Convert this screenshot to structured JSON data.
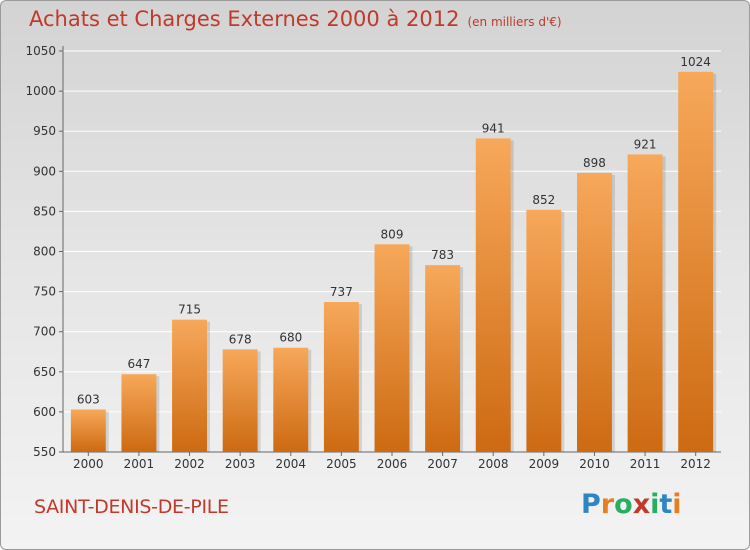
{
  "header": {
    "title": "Achats et Charges Externes 2000 à 2012",
    "unit": "(en milliers d'€)"
  },
  "footer": {
    "commune": "SAINT-DENIS-DE-PILE",
    "logo_text": "Proxiti"
  },
  "colors": {
    "bar_top": "#f7a85a",
    "bar_bottom": "#cd6a12",
    "title": "#c0392b",
    "grid": "#ffffff",
    "text": "#333333"
  },
  "chart_data": {
    "type": "bar",
    "title": "Achats et Charges Externes 2000 à 2012",
    "subtitle": "(en milliers d'€)",
    "xlabel": "",
    "ylabel": "",
    "categories": [
      "2000",
      "2001",
      "2002",
      "2003",
      "2004",
      "2005",
      "2006",
      "2007",
      "2008",
      "2009",
      "2010",
      "2011",
      "2012"
    ],
    "values": [
      603,
      647,
      715,
      678,
      680,
      737,
      809,
      783,
      941,
      852,
      898,
      921,
      1024
    ],
    "ylim": [
      550,
      1050
    ],
    "yticks": [
      550,
      600,
      650,
      700,
      750,
      800,
      850,
      900,
      950,
      1000,
      1050
    ],
    "grid": true,
    "data_labels": true
  }
}
